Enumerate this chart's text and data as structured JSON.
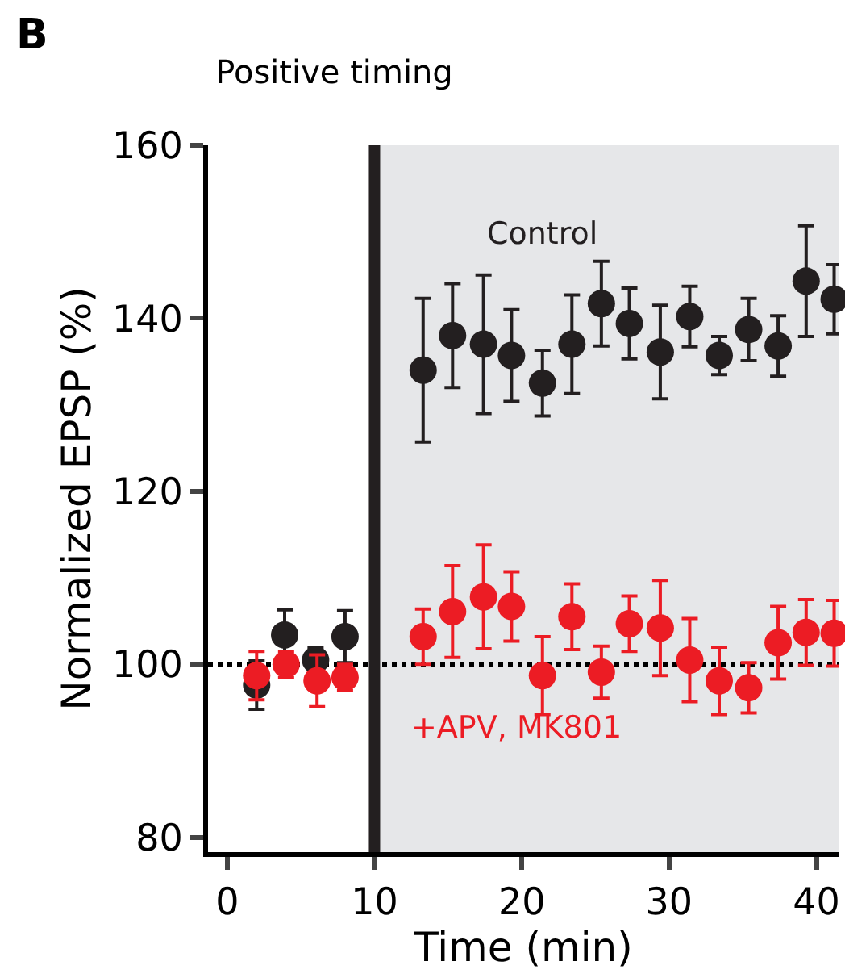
{
  "chart_data": {
    "type": "scatter",
    "title": "Positive timing",
    "xlabel": "Time (min)",
    "ylabel": "Normalized EPSP (%)",
    "annotations": [
      "B"
    ],
    "series": [
      {
        "name": "Control",
        "color": "#231f20",
        "x": [
          2.0,
          3.9,
          6.0,
          8.0,
          13.3,
          15.3,
          17.4,
          19.3,
          21.4,
          23.4,
          25.4,
          27.3,
          29.4,
          31.4,
          33.4,
          35.4,
          37.4,
          39.3,
          41.2
        ],
        "values": [
          97.6,
          103.4,
          100.5,
          103.2,
          134.0,
          138.0,
          137.0,
          135.7,
          132.5,
          137.0,
          141.7,
          139.4,
          136.1,
          140.2,
          135.7,
          138.7,
          136.8,
          144.3,
          142.2
        ],
        "errors": [
          2.8,
          2.9,
          1.5,
          3.0,
          8.3,
          6.0,
          8.0,
          5.3,
          3.8,
          5.7,
          4.9,
          4.1,
          5.4,
          3.5,
          2.2,
          3.6,
          3.5,
          6.4,
          4.0
        ]
      },
      {
        "name": "+APV, MK801",
        "color": "#ec1c24",
        "x": [
          2.0,
          4.0,
          6.1,
          8.0,
          13.3,
          15.3,
          17.4,
          19.3,
          21.4,
          23.4,
          25.4,
          27.3,
          29.4,
          31.4,
          33.4,
          35.4,
          37.4,
          39.3,
          41.2
        ],
        "values": [
          98.7,
          100.0,
          98.1,
          98.5,
          103.2,
          106.1,
          107.8,
          106.7,
          98.7,
          105.5,
          99.1,
          104.7,
          104.2,
          100.5,
          98.1,
          97.3,
          102.5,
          103.7,
          103.6
        ],
        "errors": [
          2.8,
          1.5,
          3.0,
          1.5,
          3.2,
          5.3,
          6.0,
          4.0,
          4.5,
          3.8,
          3.0,
          3.2,
          5.5,
          4.8,
          3.9,
          2.9,
          4.2,
          3.8,
          3.8
        ]
      }
    ],
    "marker": "circle",
    "xlim": [
      -1.3,
      41.5
    ],
    "xticks": [
      0,
      10,
      20,
      30,
      40
    ],
    "ylim": [
      78.3,
      160
    ],
    "yticks": [
      80,
      100,
      120,
      140,
      160
    ],
    "ref_lines": [
      {
        "axis": "y",
        "value": 100,
        "color": "#000000",
        "line_style": "dotted"
      },
      {
        "axis": "x",
        "value": 10,
        "color": "#231f20",
        "line_style": "solid"
      }
    ],
    "bands": [
      {
        "axis": "x",
        "from": 10,
        "to": 41.5,
        "color": "#e6e7e9"
      }
    ],
    "grid": false,
    "legend": false
  }
}
